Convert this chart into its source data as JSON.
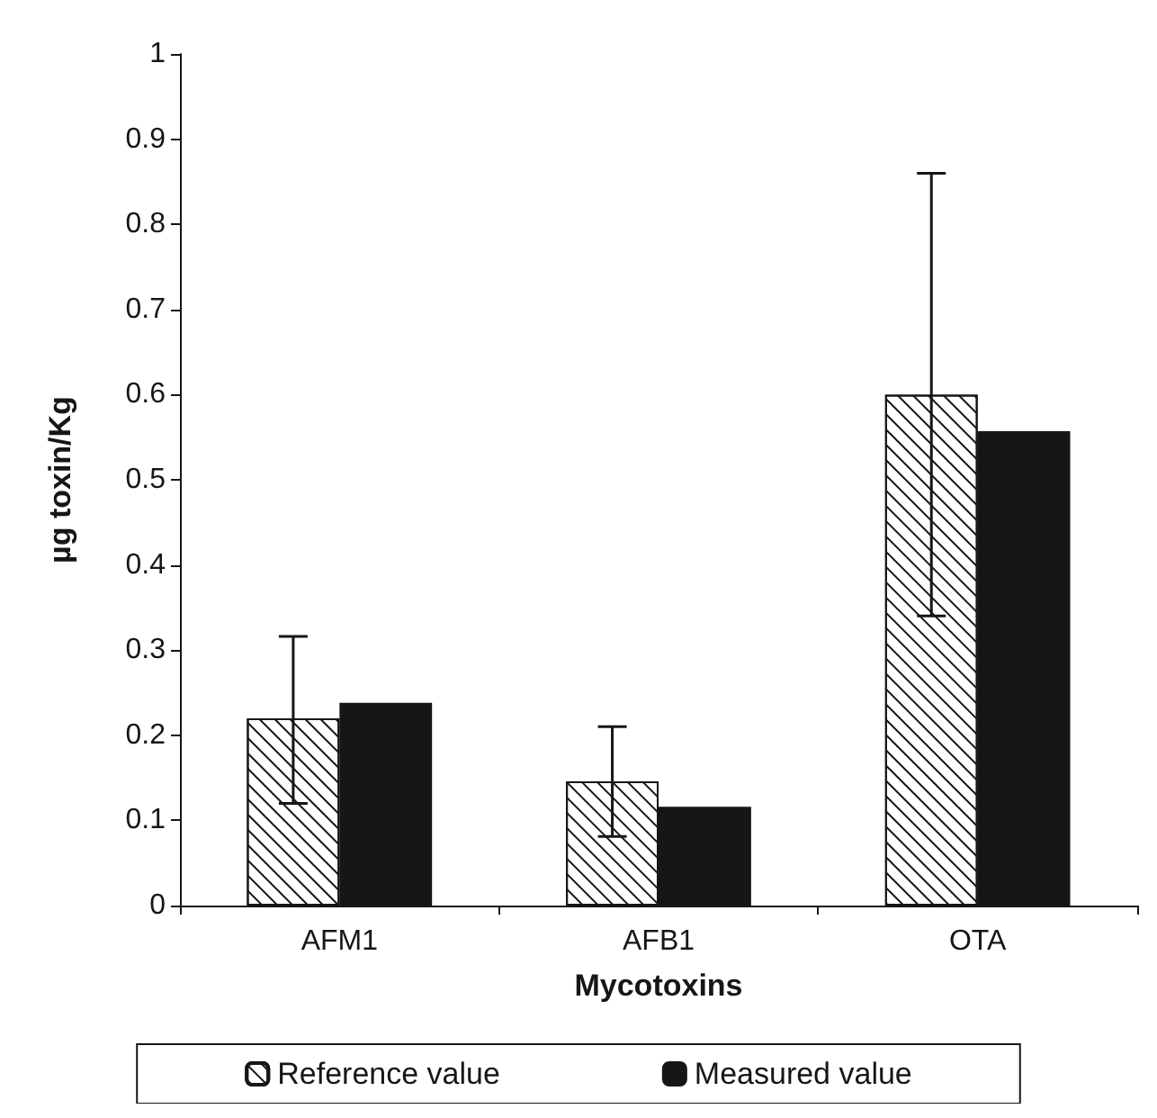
{
  "chart_data": {
    "type": "bar",
    "xlabel": "Mycotoxins",
    "ylabel": "µg toxin/Kg",
    "categories": [
      "AFM1",
      "AFB1",
      "OTA"
    ],
    "series": [
      {
        "name": "Reference value",
        "color": "#ffffff",
        "values": [
          0.22,
          0.146,
          0.6
        ],
        "errors": [
          [
            0.12,
            0.316
          ],
          [
            0.081,
            0.21
          ],
          [
            0.34,
            0.86
          ]
        ]
      },
      {
        "name": "Measured value",
        "color": "#161616",
        "values": [
          0.238,
          0.116,
          0.557
        ]
      }
    ],
    "ylim": [
      0,
      1
    ],
    "yticks": [
      0,
      0.1,
      0.2,
      0.3,
      0.4,
      0.5,
      0.6,
      0.7,
      0.8,
      0.9,
      1
    ],
    "grid": false,
    "legend": "bottom"
  }
}
